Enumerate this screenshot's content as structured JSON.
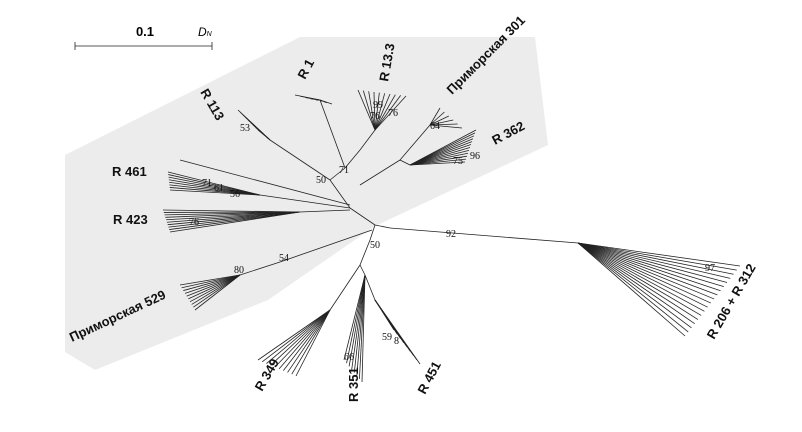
{
  "scale": {
    "value": "0.1",
    "unit": "D",
    "unit_subscript": "N"
  },
  "groups": [
    "R 1",
    "R 13.3",
    "Приморская 301",
    "R 362",
    "R 113",
    "R 461",
    "R 423",
    "Приморская 529",
    "R 349",
    "R 351",
    "R 451",
    "R 206 + R 312"
  ],
  "bootstrap": [
    "53",
    "50",
    "71",
    "99",
    "76",
    "76",
    "64",
    "75",
    "96",
    "71",
    "61",
    "56",
    "76",
    "54",
    "80",
    "50",
    "92",
    "97",
    "66",
    "59",
    "8"
  ]
}
